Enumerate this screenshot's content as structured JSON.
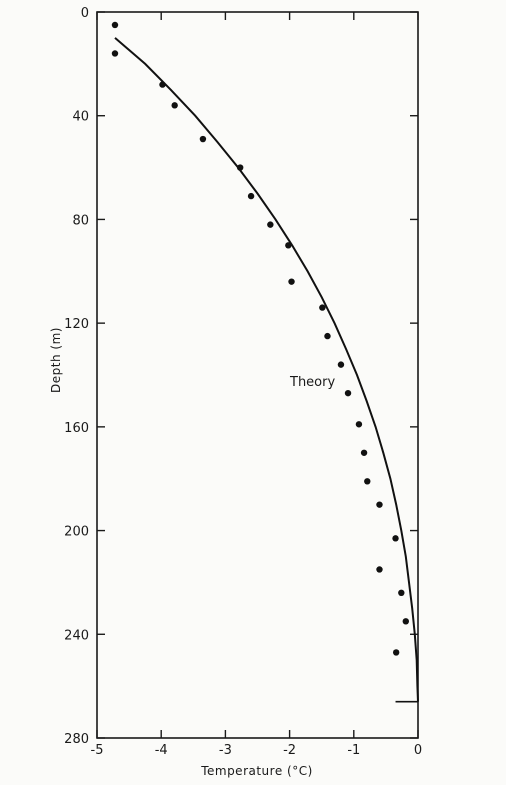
{
  "chart_data": {
    "type": "scatter",
    "xlabel": "Temperature (°C)",
    "ylabel": "Depth (m)",
    "xlim": [
      -5,
      0
    ],
    "ylim": [
      0,
      280
    ],
    "y_inverted": true,
    "grid": false,
    "x_ticks": [
      -5,
      -4,
      -3,
      -2,
      -1,
      0
    ],
    "x_tick_labels": [
      "-5",
      "-4",
      "-3",
      "-2",
      "-1",
      "0"
    ],
    "y_ticks": [
      0,
      40,
      80,
      120,
      160,
      200,
      240,
      280
    ],
    "y_tick_labels": [
      "0",
      "40",
      "80",
      "120",
      "160",
      "200",
      "240",
      "280"
    ],
    "annotation": "Theory",
    "series": [
      {
        "kind": "points",
        "points": [
          [
            -4.72,
            5
          ],
          [
            -4.72,
            16
          ],
          [
            -3.98,
            28
          ],
          [
            -3.79,
            36
          ],
          [
            -3.35,
            49
          ],
          [
            -2.77,
            60
          ],
          [
            -2.6,
            71
          ],
          [
            -2.3,
            82
          ],
          [
            -2.02,
            90
          ],
          [
            -1.97,
            104
          ],
          [
            -1.49,
            114
          ],
          [
            -1.41,
            125
          ],
          [
            -1.2,
            136
          ],
          [
            -1.09,
            147
          ],
          [
            -0.92,
            159
          ],
          [
            -0.84,
            170
          ],
          [
            -0.79,
            181
          ],
          [
            -0.6,
            190
          ],
          [
            -0.35,
            203
          ],
          [
            -0.6,
            215
          ],
          [
            -0.26,
            224
          ],
          [
            -0.19,
            235
          ],
          [
            -0.34,
            247
          ]
        ]
      },
      {
        "kind": "line",
        "points": [
          [
            -4.72,
            10
          ],
          [
            -4.25,
            20
          ],
          [
            -3.85,
            30
          ],
          [
            -3.47,
            40
          ],
          [
            -3.13,
            50
          ],
          [
            -2.8,
            60
          ],
          [
            -2.5,
            70
          ],
          [
            -2.22,
            80
          ],
          [
            -1.96,
            90
          ],
          [
            -1.72,
            100
          ],
          [
            -1.5,
            110
          ],
          [
            -1.3,
            120
          ],
          [
            -1.12,
            130
          ],
          [
            -0.95,
            140
          ],
          [
            -0.8,
            150
          ],
          [
            -0.66,
            160
          ],
          [
            -0.54,
            170
          ],
          [
            -0.43,
            180
          ],
          [
            -0.34,
            190
          ],
          [
            -0.26,
            200
          ],
          [
            -0.19,
            210
          ],
          [
            -0.14,
            220
          ],
          [
            -0.09,
            230
          ],
          [
            -0.05,
            240
          ],
          [
            -0.02,
            250
          ],
          [
            -0.01,
            260
          ],
          [
            0,
            266
          ]
        ]
      },
      {
        "kind": "bottom-marker",
        "x_range": [
          -0.35,
          0
        ],
        "y": 266
      }
    ]
  }
}
